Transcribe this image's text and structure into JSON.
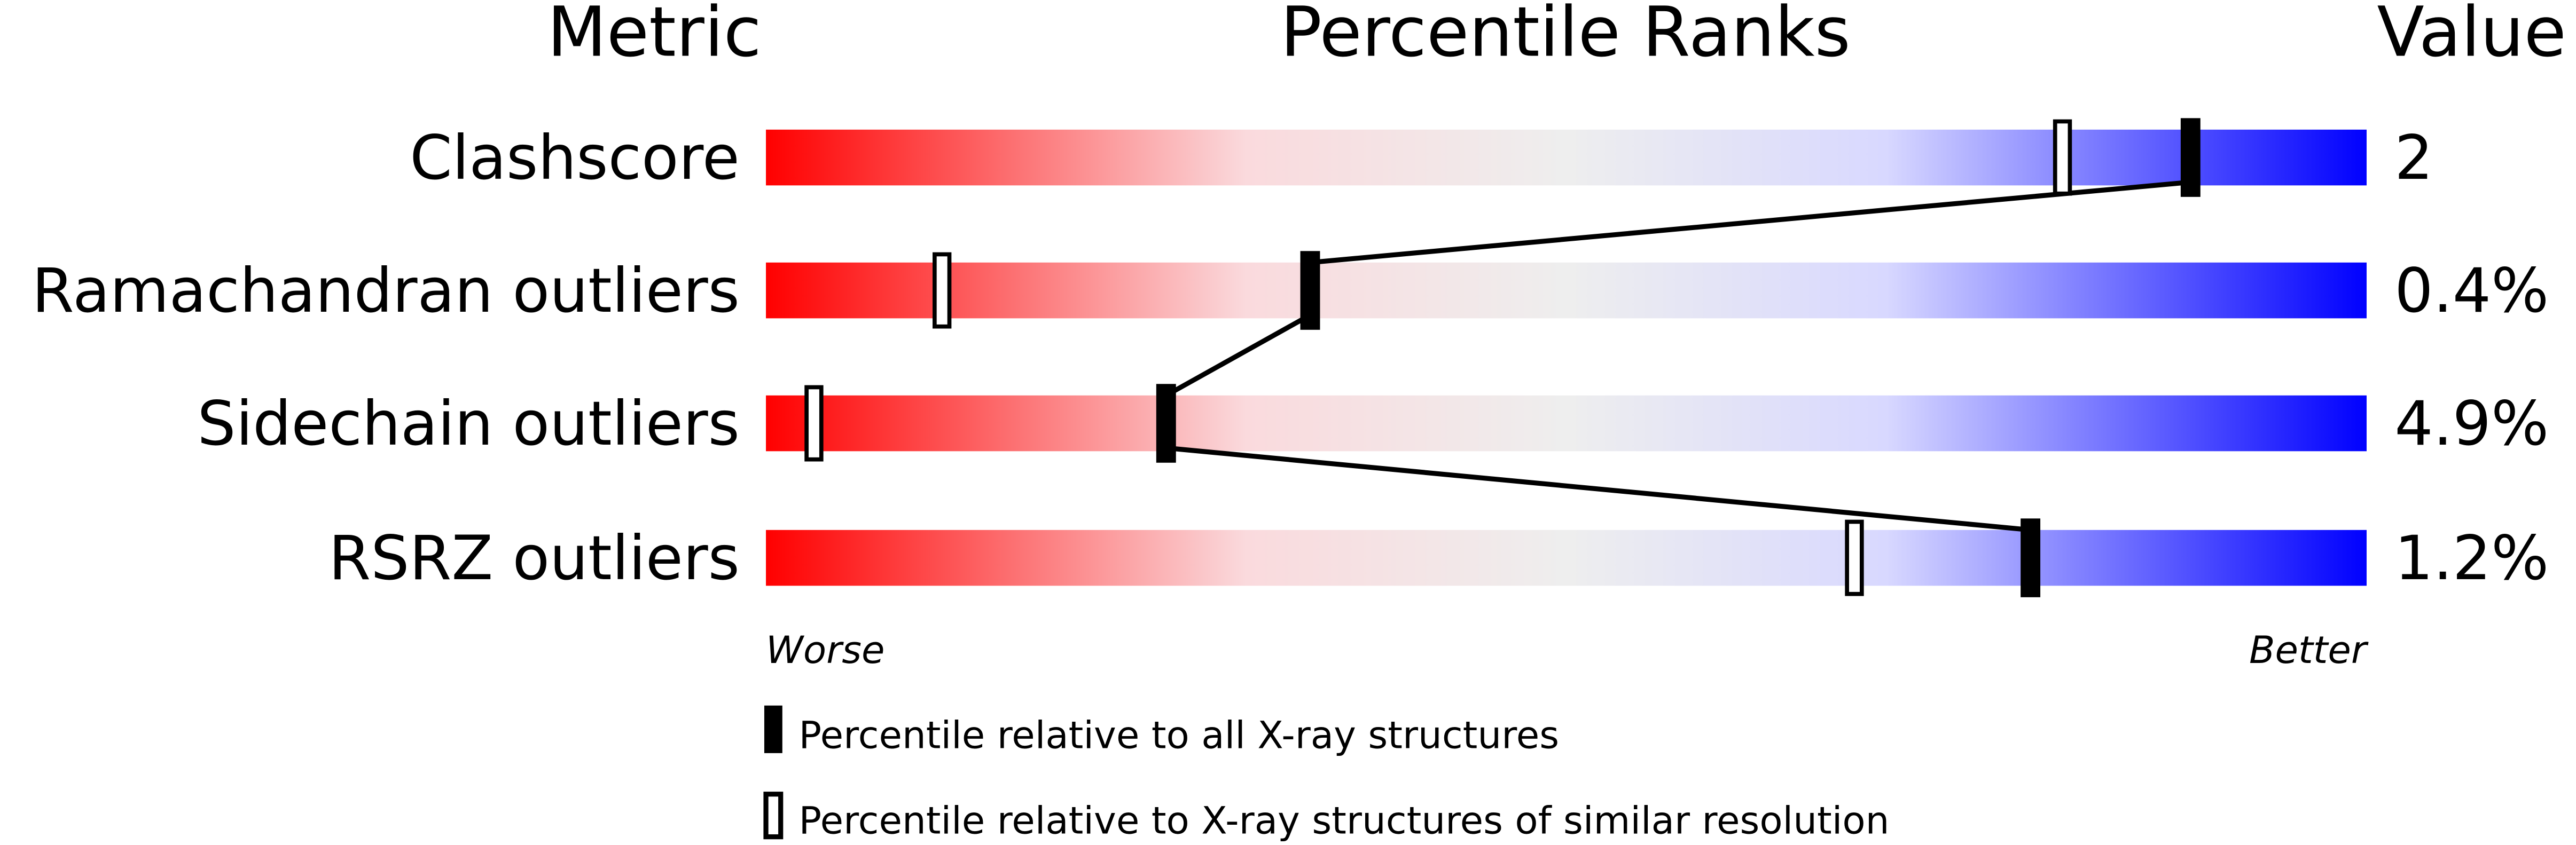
{
  "chart_data": {
    "type": "bar",
    "headers": {
      "metric": "Metric",
      "ranks": "Percentile Ranks",
      "value": "Value"
    },
    "axis": {
      "left_label": "Worse",
      "right_label": "Better",
      "range": [
        0,
        100
      ]
    },
    "gradient_colors": [
      "#ff0000",
      "#fadadd",
      "#eeeeee",
      "#d8d8ff",
      "#0000ff"
    ],
    "metrics": [
      {
        "name": "Clashscore",
        "value": "2",
        "percentile_all": 89,
        "percentile_similar": 81
      },
      {
        "name": "Ramachandran outliers",
        "value": "0.4%",
        "percentile_all": 34,
        "percentile_similar": 11
      },
      {
        "name": "Sidechain outliers",
        "value": "4.9%",
        "percentile_all": 25,
        "percentile_similar": 3
      },
      {
        "name": "RSRZ outliers",
        "value": "1.2%",
        "percentile_all": 79,
        "percentile_similar": 68
      }
    ],
    "legend": {
      "filled": "Percentile relative to all X-ray structures",
      "open": "Percentile relative to X-ray structures of similar resolution"
    }
  }
}
